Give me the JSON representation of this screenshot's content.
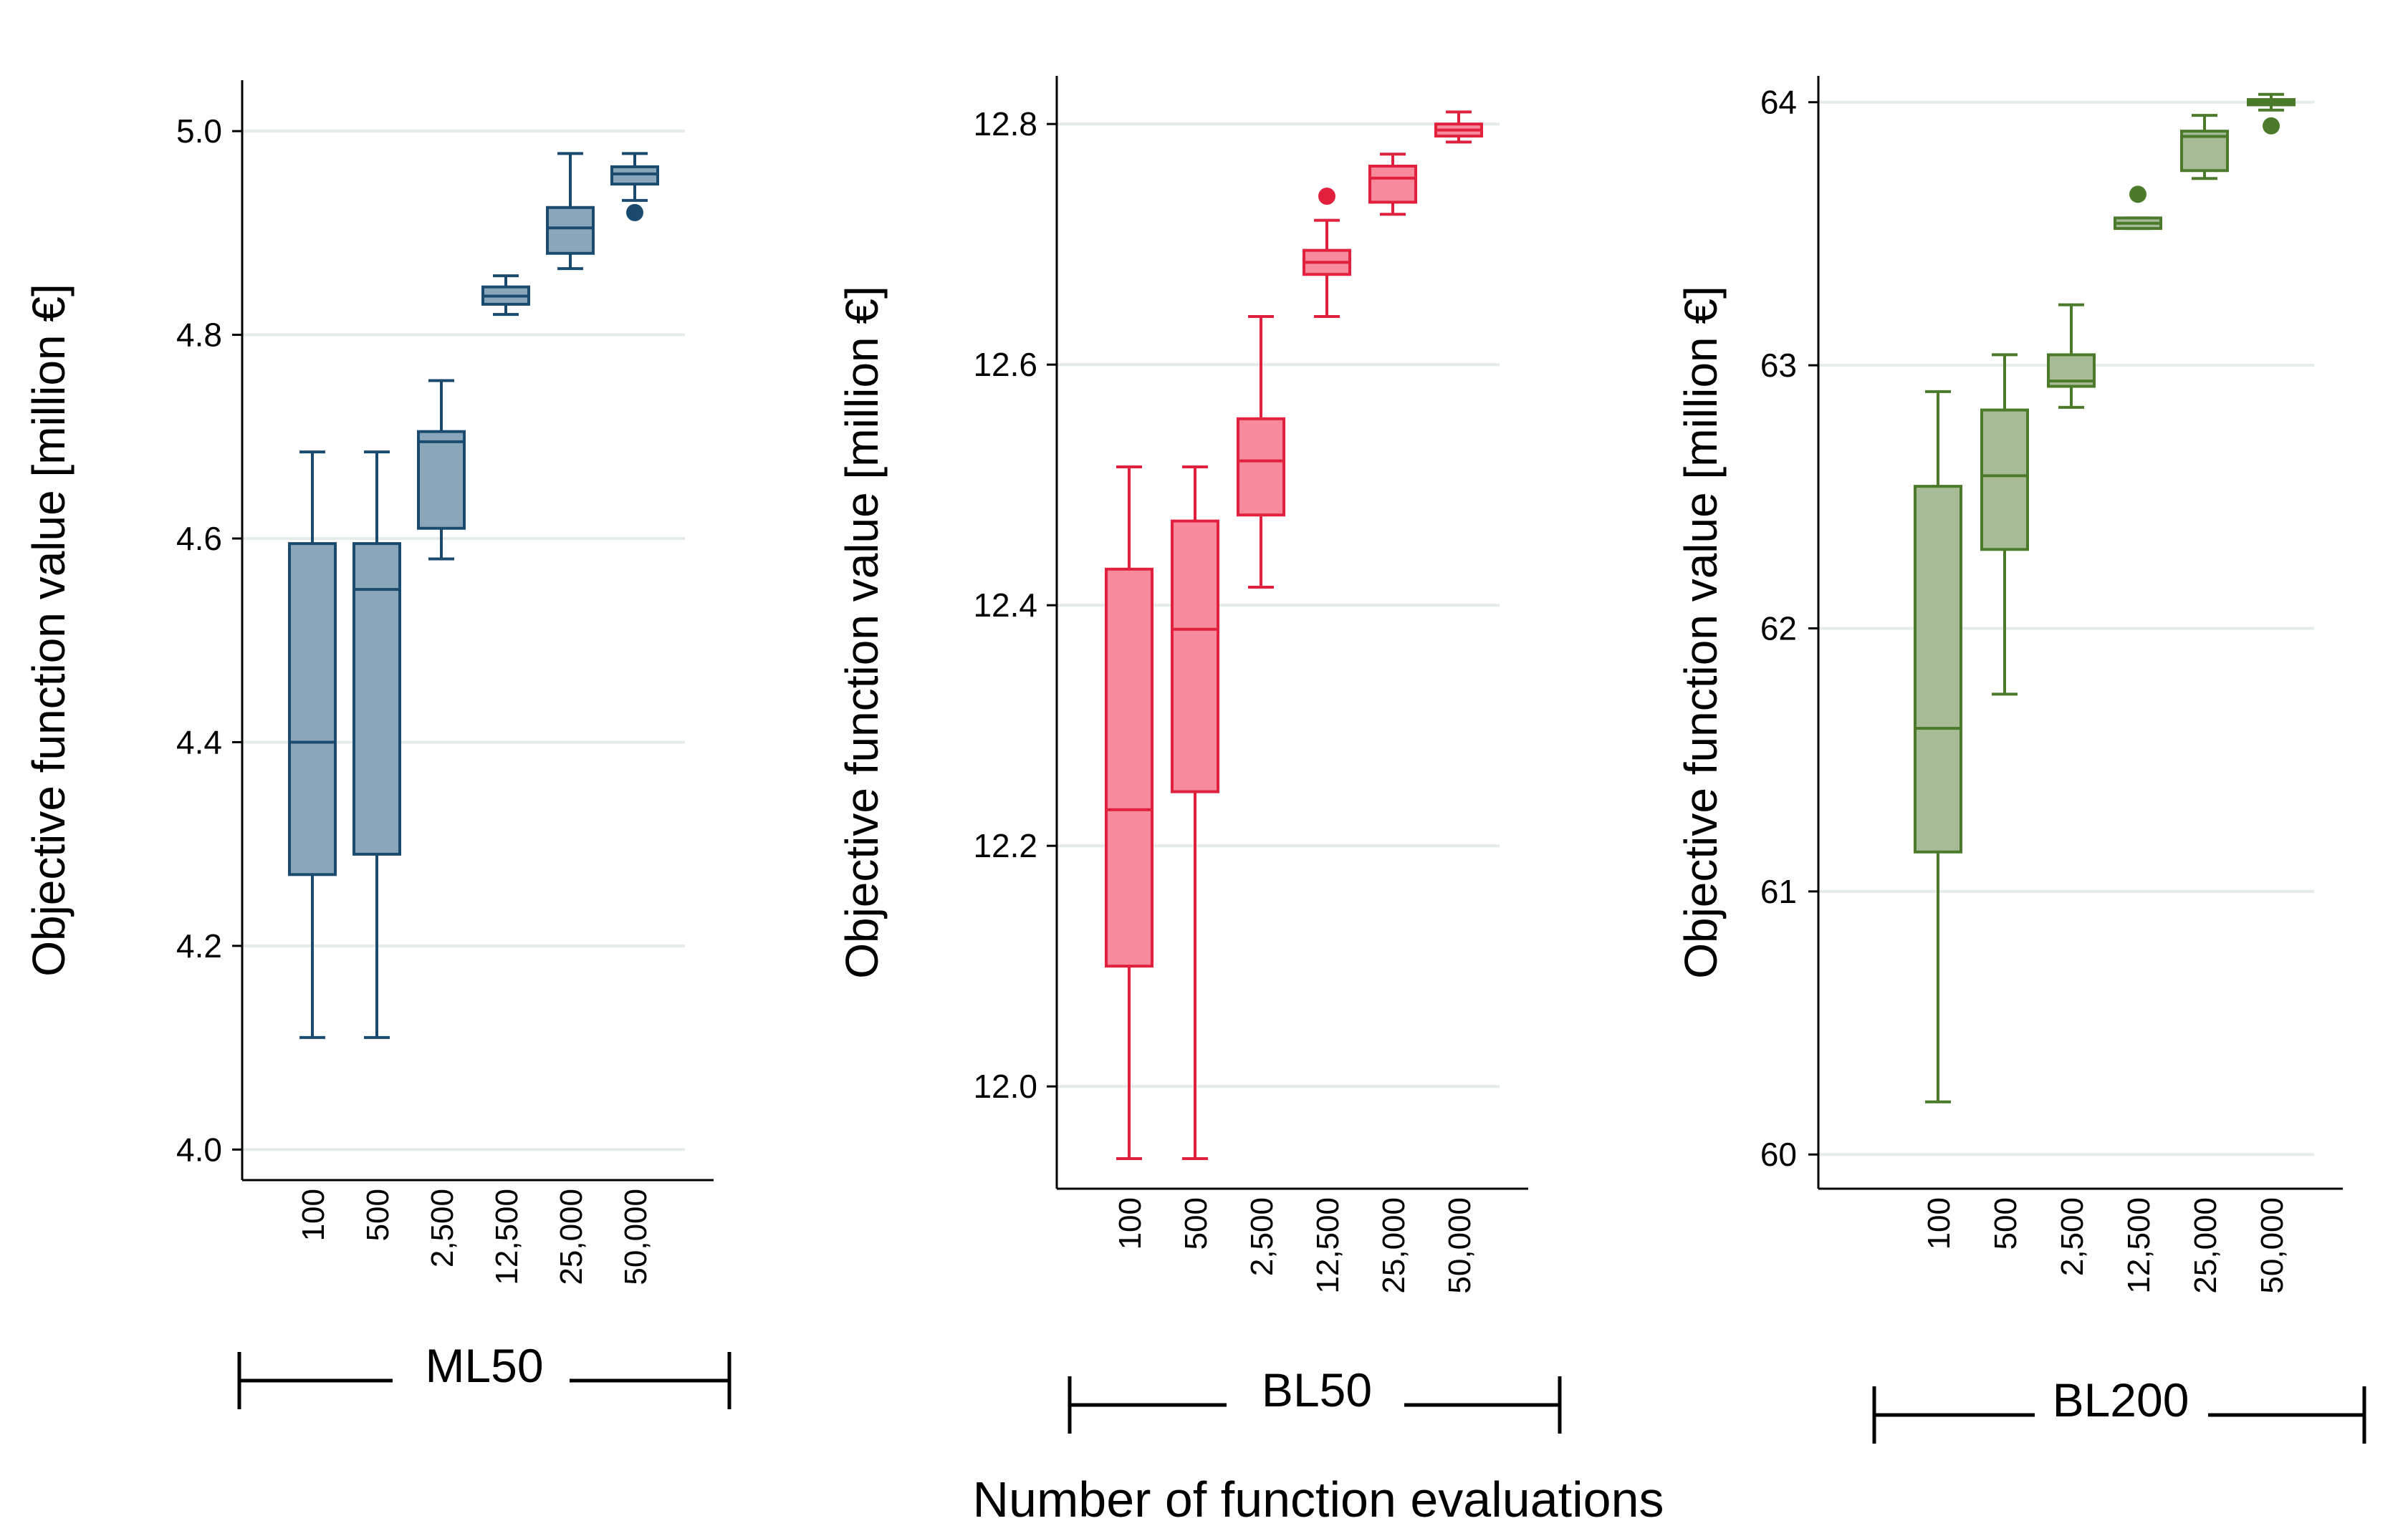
{
  "figure": {
    "xlabel": "Number of function evaluations",
    "ylabel": "Objective function value [million €]"
  },
  "chart_data": [
    {
      "type": "box",
      "group": "ML50",
      "color": "#1a4a6e",
      "fill": "#8aa6ba",
      "ylabel": "Objective function value [million €]",
      "xlabel": "Number of function evaluations",
      "ylim": [
        3.97,
        5.05
      ],
      "yticks": [
        4.0,
        4.2,
        4.4,
        4.6,
        4.8,
        5.0
      ],
      "ytick_labels": [
        "4.0",
        "4.2",
        "4.4",
        "4.6",
        "4.8",
        "5.0"
      ],
      "categories": [
        "100",
        "500",
        "2,500",
        "12,500",
        "25,000",
        "50,000"
      ],
      "boxes": [
        {
          "min": 4.11,
          "q1": 4.27,
          "median": 4.4,
          "q3": 4.595,
          "max": 4.685,
          "outliers": []
        },
        {
          "min": 4.11,
          "q1": 4.29,
          "median": 4.55,
          "q3": 4.595,
          "max": 4.685,
          "outliers": []
        },
        {
          "min": 4.58,
          "q1": 4.61,
          "median": 4.695,
          "q3": 4.705,
          "max": 4.755,
          "outliers": []
        },
        {
          "min": 4.82,
          "q1": 4.83,
          "median": 4.838,
          "q3": 4.847,
          "max": 4.858,
          "outliers": []
        },
        {
          "min": 4.865,
          "q1": 4.88,
          "median": 4.905,
          "q3": 4.925,
          "max": 4.978,
          "outliers": []
        },
        {
          "min": 4.932,
          "q1": 4.948,
          "median": 4.958,
          "q3": 4.965,
          "max": 4.978,
          "outliers": [
            4.92
          ]
        }
      ]
    },
    {
      "type": "box",
      "group": "BL50",
      "color": "#e0203c",
      "fill": "#f78a9c",
      "ylabel": "Objective function value [million €]",
      "xlabel": "Number of function evaluations",
      "ylim": [
        11.915,
        12.84
      ],
      "yticks": [
        12.0,
        12.2,
        12.4,
        12.6,
        12.8
      ],
      "ytick_labels": [
        "12.0",
        "12.2",
        "12.4",
        "12.6",
        "12.8"
      ],
      "categories": [
        "100",
        "500",
        "2,500",
        "12,500",
        "25,000",
        "50,000"
      ],
      "boxes": [
        {
          "min": 11.94,
          "q1": 12.1,
          "median": 12.23,
          "q3": 12.43,
          "max": 12.515,
          "outliers": []
        },
        {
          "min": 11.94,
          "q1": 12.245,
          "median": 12.38,
          "q3": 12.47,
          "max": 12.515,
          "outliers": []
        },
        {
          "min": 12.415,
          "q1": 12.475,
          "median": 12.52,
          "q3": 12.555,
          "max": 12.64,
          "outliers": []
        },
        {
          "min": 12.64,
          "q1": 12.675,
          "median": 12.685,
          "q3": 12.695,
          "max": 12.72,
          "outliers": [
            12.74
          ]
        },
        {
          "min": 12.725,
          "q1": 12.735,
          "median": 12.755,
          "q3": 12.765,
          "max": 12.775,
          "outliers": []
        },
        {
          "min": 12.785,
          "q1": 12.79,
          "median": 12.795,
          "q3": 12.8,
          "max": 12.81,
          "outliers": []
        }
      ]
    },
    {
      "type": "box",
      "group": "BL200",
      "color": "#4a7a2a",
      "fill": "#a7bc96",
      "ylabel": "Objective function value [million €]",
      "xlabel": "Number of function evaluations",
      "ylim": [
        59.87,
        64.1
      ],
      "yticks": [
        60,
        61,
        62,
        63,
        64
      ],
      "ytick_labels": [
        "60",
        "61",
        "62",
        "63",
        "64"
      ],
      "categories": [
        "100",
        "500",
        "2,500",
        "12,500",
        "25,000",
        "50,000"
      ],
      "boxes": [
        {
          "min": 60.2,
          "q1": 61.15,
          "median": 61.62,
          "q3": 62.54,
          "max": 62.9,
          "outliers": []
        },
        {
          "min": 61.75,
          "q1": 62.3,
          "median": 62.58,
          "q3": 62.83,
          "max": 63.04,
          "outliers": []
        },
        {
          "min": 62.84,
          "q1": 62.92,
          "median": 62.94,
          "q3": 63.04,
          "max": 63.23,
          "outliers": []
        },
        {
          "min": 63.52,
          "q1": 63.52,
          "median": 63.54,
          "q3": 63.56,
          "max": 63.56,
          "outliers": [
            63.65
          ]
        },
        {
          "min": 63.71,
          "q1": 63.74,
          "median": 63.87,
          "q3": 63.89,
          "max": 63.95,
          "outliers": []
        },
        {
          "min": 63.97,
          "q1": 63.99,
          "median": 64.0,
          "q3": 64.01,
          "max": 64.03,
          "outliers": [
            63.91
          ]
        }
      ]
    }
  ]
}
